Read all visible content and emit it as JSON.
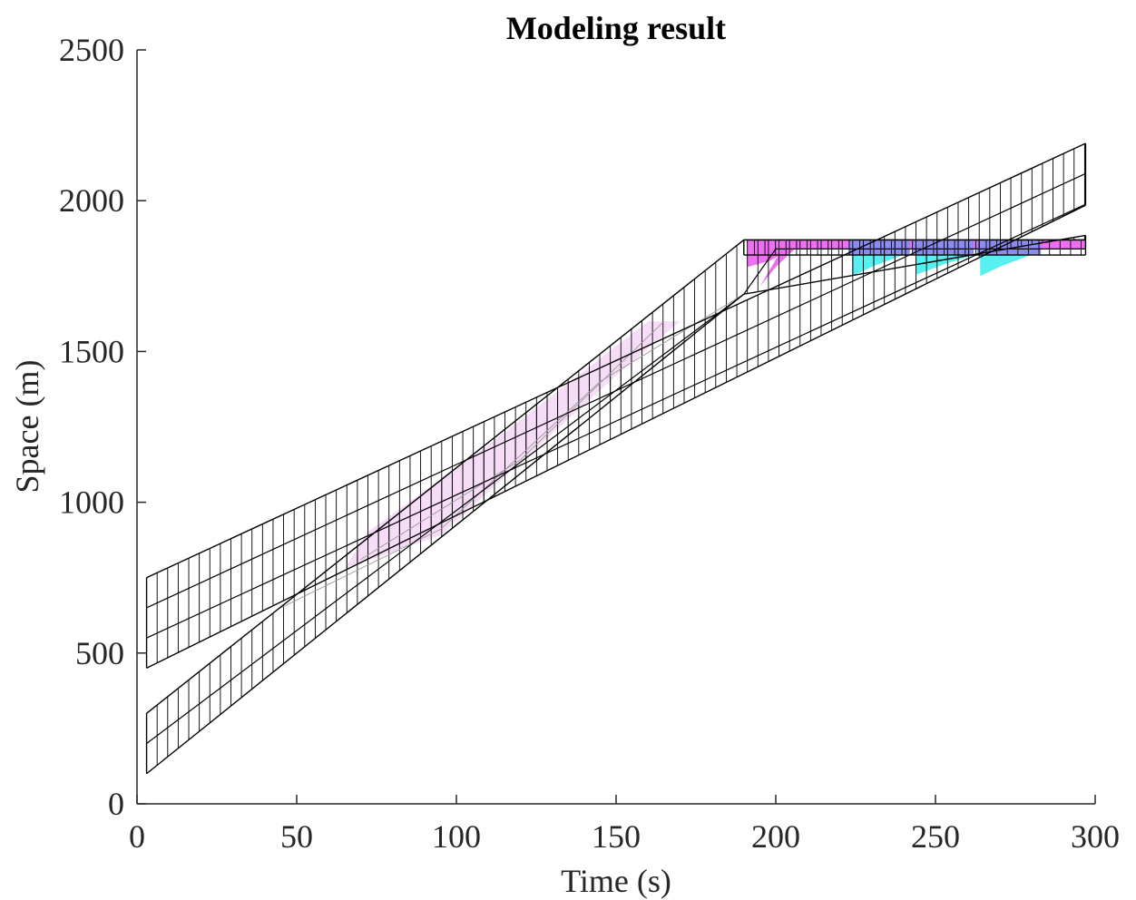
{
  "chart_data": {
    "type": "line",
    "title": "Modeling result",
    "xlabel": "Time (s)",
    "ylabel": "Space (m)",
    "xlim": [
      0,
      300
    ],
    "ylim": [
      0,
      2500
    ],
    "xticks": [
      0,
      50,
      100,
      150,
      200,
      250,
      300
    ],
    "xtick_labels": [
      "0",
      "50",
      "100",
      "150",
      "200",
      "250",
      "300"
    ],
    "yticks": [
      0,
      500,
      1000,
      1500,
      2000,
      2500
    ],
    "ytick_labels": [
      "0",
      "500",
      "1000",
      "1500",
      "2000",
      "2500"
    ],
    "grid": false,
    "hatch_step": 3.3,
    "bands": [
      {
        "id": "band-slow",
        "lower": [
          [
            3,
            450
          ],
          [
            297,
            1985
          ]
        ],
        "upper": [
          [
            3,
            750
          ],
          [
            297,
            2190
          ]
        ],
        "centers": [
          [
            [
              3,
              550
            ],
            [
              297,
              1988
            ]
          ],
          [
            [
              3,
              650
            ],
            [
              297,
              2090
            ]
          ]
        ]
      },
      {
        "id": "band-fast",
        "lower": [
          [
            3,
            100
          ],
          [
            190,
            1690
          ],
          [
            297,
            1885
          ]
        ],
        "upper": [
          [
            3,
            300
          ],
          [
            190,
            1870
          ],
          [
            297,
            1870
          ]
        ],
        "centers": [
          [
            [
              3,
              200
            ],
            [
              190,
              1690
            ],
            [
              200,
              1840
            ],
            [
              297,
              1840
            ]
          ]
        ]
      },
      {
        "id": "band-queue",
        "lower": [
          [
            190,
            1820
          ],
          [
            297,
            1820
          ]
        ],
        "upper": [
          [
            190,
            1870
          ],
          [
            297,
            1870
          ]
        ],
        "centers": []
      }
    ],
    "ghost_lines": [
      [
        [
          45,
          650
        ],
        [
          95,
          910
        ],
        [
          145,
          1400
        ],
        [
          190,
          1690
        ]
      ],
      [
        [
          70,
          810
        ],
        [
          120,
          1140
        ],
        [
          165,
          1600
        ]
      ]
    ],
    "shaded_regions": [
      {
        "color": "#f6dcf6",
        "polygon": [
          [
            65,
            780
          ],
          [
            95,
            890
          ],
          [
            150,
            1420
          ],
          [
            170,
            1600
          ],
          [
            160,
            1600
          ],
          [
            110,
            1190
          ],
          [
            72,
            900
          ]
        ]
      },
      {
        "color": "#ee6ff2",
        "polygon": [
          [
            191,
            1780
          ],
          [
            191,
            1870
          ],
          [
            297,
            1870
          ],
          [
            297,
            1840
          ],
          [
            205,
            1840
          ],
          [
            198,
            1800
          ]
        ]
      },
      {
        "color": "#ee6ff2",
        "polygon": [
          [
            195,
            1715
          ],
          [
            202,
            1840
          ],
          [
            206,
            1840
          ],
          [
            200,
            1780
          ]
        ]
      },
      {
        "color": "#56f0f0",
        "polygon": [
          [
            224,
            1750
          ],
          [
            224,
            1820
          ],
          [
            240,
            1820
          ],
          [
            231,
            1785
          ]
        ]
      },
      {
        "color": "#56f0f0",
        "polygon": [
          [
            244,
            1755
          ],
          [
            244,
            1820
          ],
          [
            262,
            1820
          ],
          [
            253,
            1790
          ]
        ]
      },
      {
        "color": "#56f0f0",
        "polygon": [
          [
            264,
            1750
          ],
          [
            264,
            1820
          ],
          [
            280,
            1820
          ],
          [
            271,
            1785
          ]
        ]
      },
      {
        "color": "#8c8cf0",
        "polygon": [
          [
            223,
            1820
          ],
          [
            223,
            1870
          ],
          [
            242,
            1870
          ],
          [
            242,
            1820
          ]
        ]
      },
      {
        "color": "#8c8cf0",
        "polygon": [
          [
            243,
            1820
          ],
          [
            243,
            1870
          ],
          [
            262,
            1870
          ],
          [
            262,
            1820
          ]
        ]
      },
      {
        "color": "#8c8cf0",
        "polygon": [
          [
            263,
            1820
          ],
          [
            263,
            1870
          ],
          [
            283,
            1870
          ],
          [
            283,
            1820
          ]
        ]
      }
    ]
  }
}
